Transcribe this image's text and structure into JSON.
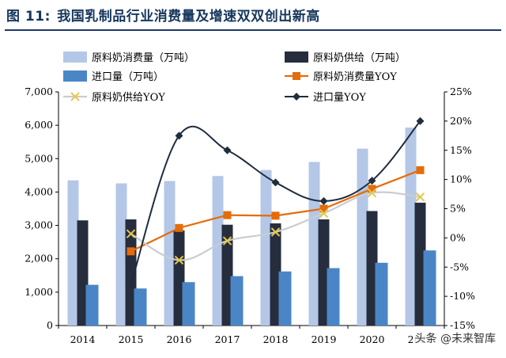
{
  "figure": {
    "label": "图 11:",
    "title": "我国乳制品行业消费量及增速双双创出新高"
  },
  "watermark": "头条 @未来智库",
  "colors": {
    "consumption_bar": "#b4c7e7",
    "supply_bar": "#262d3d",
    "import_bar": "#4a86c5",
    "consumption_yoy": "#e46c0a",
    "supply_yoy": "#c8cdd4",
    "supply_yoy_marker": "#e6c84a",
    "import_yoy": "#1f2d3d"
  },
  "chart_data": {
    "type": "bar",
    "categories": [
      "2014",
      "2015",
      "2016",
      "2017",
      "2018",
      "2019",
      "2020",
      "2021"
    ],
    "x_tick_labels": [
      "2014",
      "2015",
      "2016",
      "2017",
      "2018",
      "2019",
      "2020",
      "2021"
    ],
    "left_axis": {
      "ylim": [
        0,
        7000
      ],
      "ticks": [
        0,
        1000,
        2000,
        3000,
        4000,
        5000,
        6000,
        7000
      ],
      "tick_labels": [
        "0",
        "1,000",
        "2,000",
        "3,000",
        "4,000",
        "5,000",
        "6,000",
        "7,000"
      ]
    },
    "right_axis": {
      "ylim": [
        -15,
        25
      ],
      "ticks": [
        -15,
        -10,
        -5,
        0,
        5,
        10,
        15,
        20,
        25
      ],
      "tick_labels": [
        "-15%",
        "-10%",
        "-5%",
        "0%",
        "5%",
        "10%",
        "15%",
        "20%",
        "25%"
      ]
    },
    "series": [
      {
        "name": "原料奶消费量（万吨）",
        "type": "bar",
        "axis": "left",
        "values": [
          4350,
          4260,
          4330,
          4480,
          4660,
          4900,
          5300,
          5930
        ]
      },
      {
        "name": "原料奶供给（万吨）",
        "type": "bar",
        "axis": "left",
        "values": [
          3150,
          3180,
          2850,
          3020,
          3060,
          3180,
          3430,
          3680
        ]
      },
      {
        "name": "进口量（万吨）",
        "type": "bar",
        "axis": "left",
        "values": [
          1220,
          1110,
          1300,
          1480,
          1620,
          1720,
          1880,
          2250
        ]
      },
      {
        "name": "原料奶消费量YOY",
        "type": "line",
        "axis": "right",
        "values": [
          null,
          -2.3,
          1.7,
          3.9,
          3.8,
          5.0,
          8.4,
          11.6
        ]
      },
      {
        "name": "原料奶供给YOY",
        "type": "line",
        "axis": "right",
        "values": [
          null,
          0.7,
          -3.8,
          -0.5,
          1.0,
          4.2,
          7.7,
          7.0
        ]
      },
      {
        "name": "进口量YOY",
        "type": "line",
        "axis": "right",
        "values": [
          null,
          -8.0,
          17.5,
          15.0,
          9.5,
          6.3,
          9.8,
          20.0
        ]
      }
    ],
    "legend_placement": "top",
    "grid": false
  }
}
